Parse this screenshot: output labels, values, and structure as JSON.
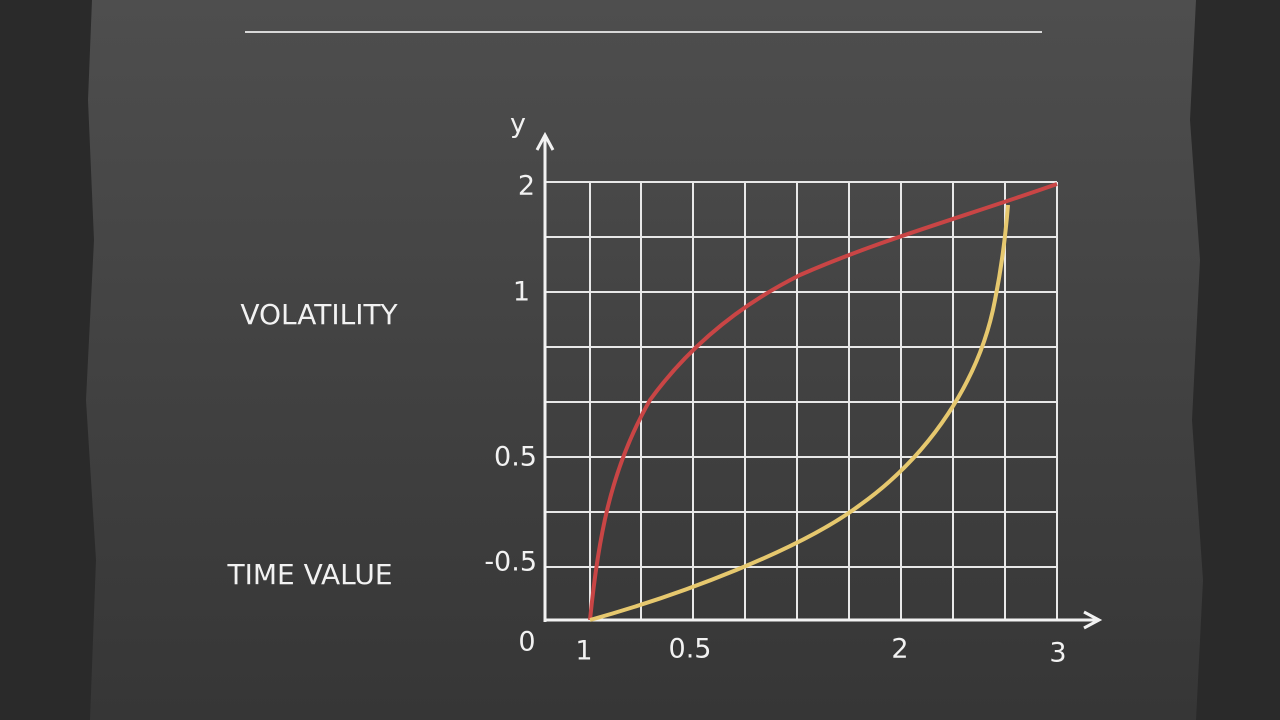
{
  "axis": {
    "y_label": "y",
    "y_ticks": [
      "2",
      "1",
      "0.5",
      "-0.5"
    ],
    "origin": "0",
    "x_ticks": [
      "1",
      "0.5",
      "2",
      "3"
    ]
  },
  "side_labels": [
    "VOLATILITY",
    "TIME VALUE"
  ]
}
